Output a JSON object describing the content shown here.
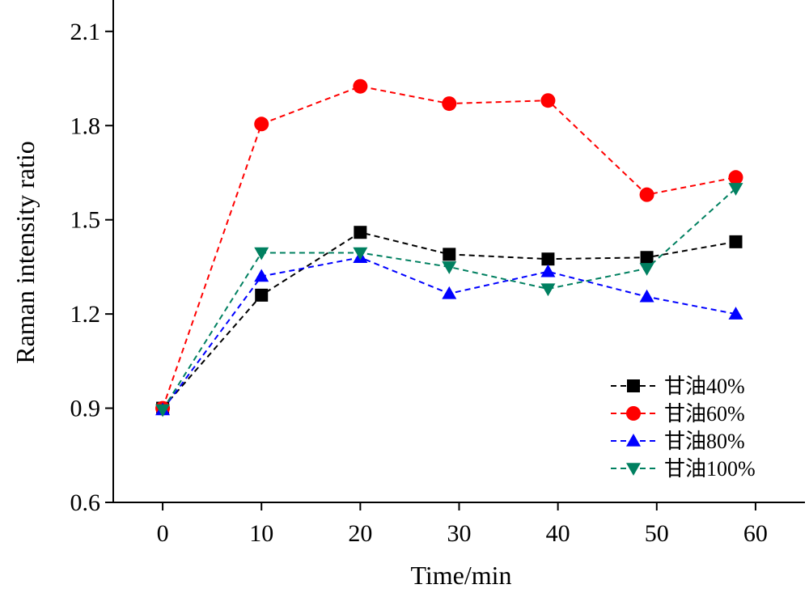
{
  "chart_data": {
    "type": "line",
    "title": "",
    "xlabel": "Time/min",
    "ylabel": "Raman intensity ratio",
    "xlim": [
      -5,
      65
    ],
    "ylim": [
      0.6,
      2.2
    ],
    "xticks": [
      0,
      10,
      20,
      30,
      40,
      50,
      60
    ],
    "xtick_labels": [
      "0",
      "10",
      "20",
      "30",
      "40",
      "50",
      "60"
    ],
    "yticks": [
      0.6,
      0.9,
      1.2,
      1.5,
      1.8,
      2.1
    ],
    "ytick_labels": [
      "0.6",
      "0.9",
      "1.2",
      "1.5",
      "1.8",
      "2.1"
    ],
    "grid": false,
    "legend_position": "bottom-right",
    "series": [
      {
        "name": "甘油40%",
        "color": "#000000",
        "marker": "square",
        "x": [
          0,
          10,
          20,
          29,
          39,
          49,
          58
        ],
        "y": [
          0.9,
          1.26,
          1.46,
          1.39,
          1.375,
          1.38,
          1.43
        ]
      },
      {
        "name": "甘油60%",
        "color": "#ff0000",
        "marker": "circle",
        "x": [
          0,
          10,
          20,
          29,
          39,
          49,
          58
        ],
        "y": [
          0.9,
          1.805,
          1.925,
          1.87,
          1.88,
          1.58,
          1.635
        ]
      },
      {
        "name": "甘油80%",
        "color": "#0000ff",
        "marker": "triangle-up",
        "x": [
          0,
          10,
          20,
          29,
          39,
          49,
          58
        ],
        "y": [
          0.895,
          1.32,
          1.38,
          1.265,
          1.335,
          1.255,
          1.2
        ]
      },
      {
        "name": "甘油100%",
        "color": "#008060",
        "marker": "triangle-down",
        "x": [
          0,
          10,
          20,
          29,
          39,
          49,
          58
        ],
        "y": [
          0.895,
          1.395,
          1.395,
          1.35,
          1.28,
          1.345,
          1.6
        ]
      }
    ]
  }
}
